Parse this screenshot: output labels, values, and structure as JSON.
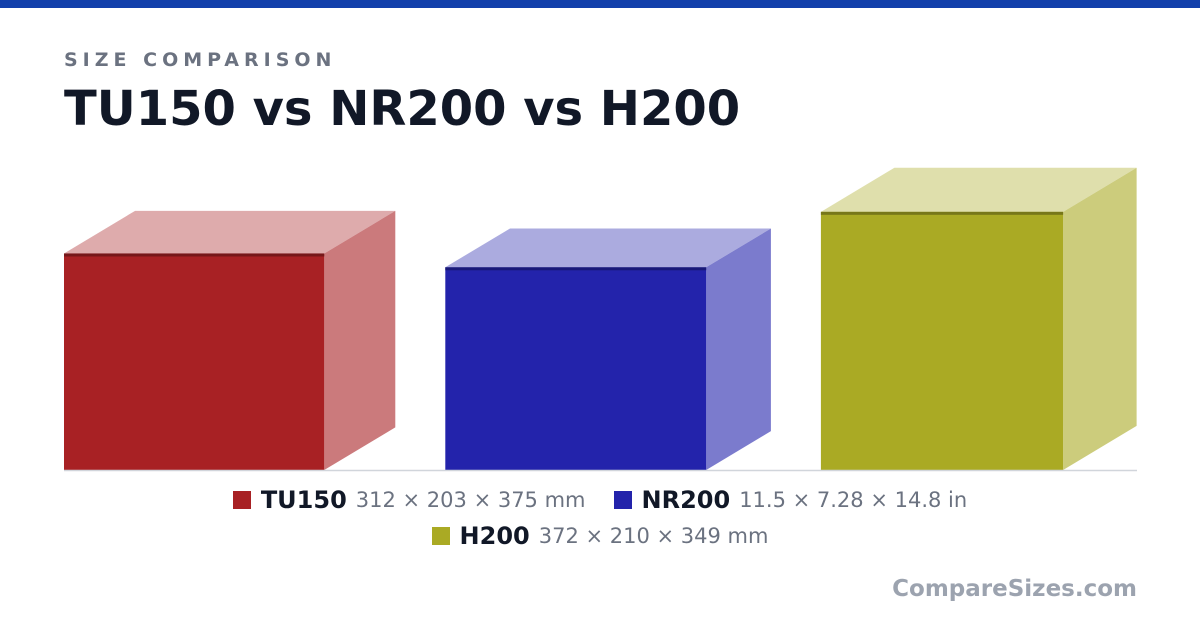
{
  "chart_data": {
    "type": "box3d",
    "kicker": "SIZE COMPARISON",
    "title": "TU150 vs NR200 vs H200",
    "series": [
      {
        "name": "TU150",
        "color": "#a82124",
        "unit": "mm",
        "values": [
          312,
          203,
          375
        ],
        "label": "312 × 203 × 375 mm"
      },
      {
        "name": "NR200",
        "color": "#2323ab",
        "unit": "in",
        "values": [
          11.5,
          7.28,
          14.8
        ],
        "label": "11.5 × 7.28 × 14.8 in"
      },
      {
        "name": "H200",
        "color": "#aaaa24",
        "unit": "mm",
        "values": [
          372,
          210,
          349
        ],
        "label": "372 × 210 × 349 mm"
      }
    ],
    "footer": "CompareSizes.com"
  }
}
